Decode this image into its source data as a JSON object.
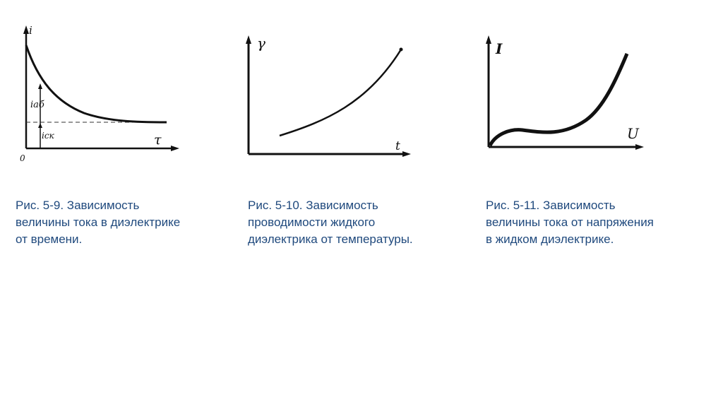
{
  "figures": [
    {
      "caption": "Рис. 5-9. Зависимость\nвеличины тока в диэлектрике\nот времени.",
      "y_axis_label": "i",
      "x_axis_label": "τ",
      "origin_label": "0",
      "annotation_upper": "iаб",
      "annotation_lower": "iск"
    },
    {
      "caption": "Рис. 5-10. Зависимость\nпроводимости жидкого\nдиэлектрика от температуры.",
      "y_axis_label": "γ",
      "x_axis_label": "t"
    },
    {
      "caption": "Рис. 5-11. Зависимость\nвеличины тока от напряжения\nв жидком диэлектрике.",
      "y_axis_label": "I",
      "x_axis_label": "U"
    }
  ],
  "colors": {
    "caption": "#1f497d",
    "line": "#111111"
  }
}
